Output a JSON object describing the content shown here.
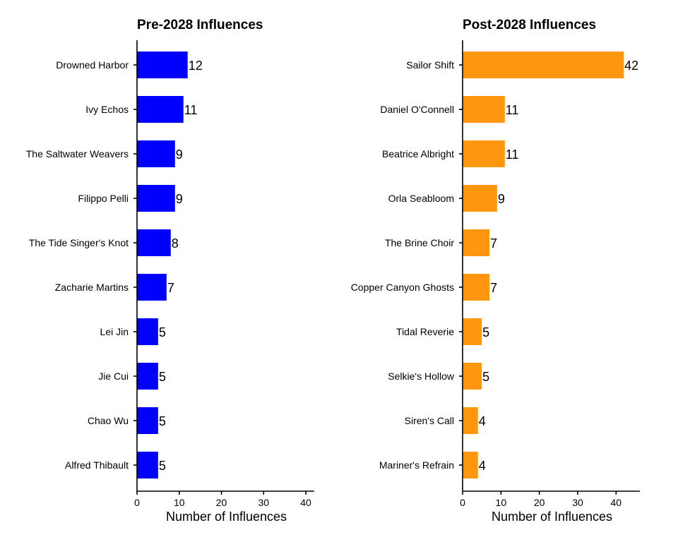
{
  "chart_data": [
    {
      "type": "bar",
      "orientation": "horizontal",
      "title": "Pre-2028 Influences",
      "xlabel": "Number of Influences",
      "ylabel": "",
      "categories": [
        "Drowned Harbor",
        "Ivy Echos",
        "The Saltwater Weavers",
        "Filippo Pelli",
        "The Tide Singer's Knot",
        "Zacharie Martins",
        "Lei Jin",
        "Jie Cui",
        "Chao Wu",
        "Alfred Thibault"
      ],
      "values": [
        12,
        11,
        9,
        9,
        8,
        7,
        5,
        5,
        5,
        5
      ],
      "xlim": [
        0,
        42
      ],
      "xticks": [
        0,
        10,
        20,
        30,
        40
      ],
      "color": "#0000ff",
      "grid": false,
      "legend": "none"
    },
    {
      "type": "bar",
      "orientation": "horizontal",
      "title": "Post-2028 Influences",
      "xlabel": "Number of Influences",
      "ylabel": "",
      "categories": [
        "Sailor Shift",
        "Daniel O'Connell",
        "Beatrice Albright",
        "Orla Seabloom",
        "The Brine Choir",
        "Copper Canyon Ghosts",
        "Tidal Reverie",
        "Selkie's Hollow",
        "Siren's Call",
        "Mariner's Refrain"
      ],
      "values": [
        42,
        11,
        11,
        9,
        7,
        7,
        5,
        5,
        4,
        4
      ],
      "xlim": [
        0,
        46.2
      ],
      "xticks": [
        0,
        10,
        20,
        30,
        40
      ],
      "color": "#ff9610",
      "grid": false,
      "legend": "none"
    }
  ]
}
